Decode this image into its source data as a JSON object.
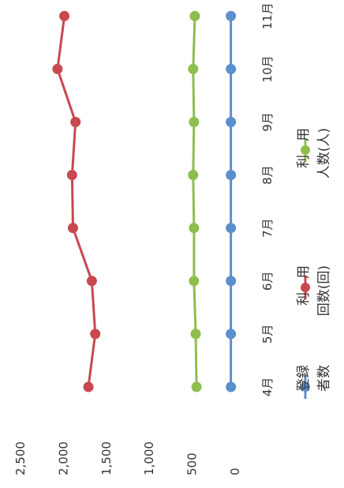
{
  "chart_data": {
    "type": "line",
    "orientation": "rotated-90-clockwise",
    "categories": [
      "4月",
      "5月",
      "6月",
      "7月",
      "8月",
      "9月",
      "10月",
      "11月"
    ],
    "ylim": [
      0,
      2500
    ],
    "yticks": [
      "2,500",
      "2,000",
      "1,500",
      "1,000",
      "500",
      "0"
    ],
    "grid": false,
    "legend_position": "bottom",
    "series": [
      {
        "name": "登録者数",
        "name_lines": [
          "登録",
          "者数"
        ],
        "color": "#5b8fce",
        "values": [
          40,
          40,
          40,
          40,
          40,
          40,
          40,
          40
        ]
      },
      {
        "name": "利用回数(回)",
        "name_lines": [
          "利　用",
          "回数(回)"
        ],
        "color": "#c9474f",
        "values": [
          1700,
          1620,
          1660,
          1880,
          1890,
          1850,
          2060,
          1980
        ]
      },
      {
        "name": "利用人数(人)",
        "name_lines": [
          "利　用",
          "人数(人)"
        ],
        "color": "#8ebe4e",
        "values": [
          440,
          450,
          470,
          470,
          480,
          470,
          480,
          460
        ]
      }
    ]
  }
}
